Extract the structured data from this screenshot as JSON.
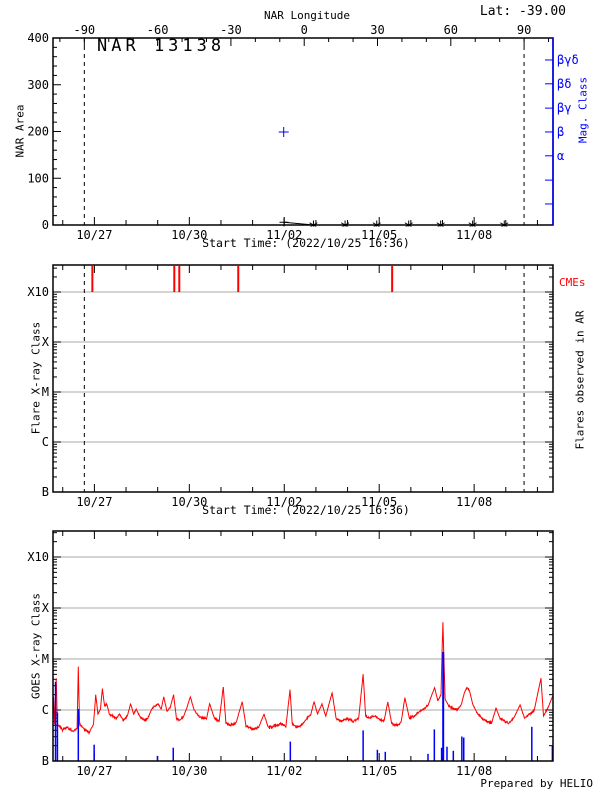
{
  "figure": {
    "lat_label": "Lat: -39.00",
    "prepared_by": "Prepared by HELIO"
  },
  "colors": {
    "red": "#ff0000",
    "blue": "#0000ff",
    "grid": "#a9a9a9",
    "frame": "#000000",
    "background": "#ffffff"
  },
  "time_axis": {
    "start_caption": "Start Time: (2022/10/25 16:36)",
    "span_days": 15.8,
    "major_ticks": [
      {
        "day": 1.308,
        "label": "10/27"
      },
      {
        "day": 4.308,
        "label": "10/30"
      },
      {
        "day": 7.308,
        "label": "11/02"
      },
      {
        "day": 10.308,
        "label": "11/05"
      },
      {
        "day": 13.308,
        "label": "11/08"
      }
    ],
    "minor_step_days": 1,
    "first_minor_day": 0.308
  },
  "chart_data": [
    {
      "type": "scatter",
      "panel": "nar-area",
      "title": "NAR 13138",
      "ylabel": "NAR Area",
      "ylim": [
        0,
        400
      ],
      "yticks": [
        0,
        100,
        200,
        300,
        400
      ],
      "y_minor_step": 20,
      "top_axis": {
        "label": "NAR Longitude",
        "deg_ticks": [
          -90,
          -60,
          -30,
          0,
          30,
          60,
          90
        ],
        "deg_minor_step": 10,
        "deg_at_day0": -102.82,
        "deg_per_day": 12.9525
      },
      "right_axis": {
        "label": "Mag. Class",
        "ticks": [
          {
            "label": "βγδ",
            "value": 353
          },
          {
            "label": "βδ",
            "value": 302
          },
          {
            "label": "βγ",
            "value": 250
          },
          {
            "label": "β",
            "value": 199
          },
          {
            "label": "α",
            "value": 148
          },
          {
            "label": "",
            "value": 96
          },
          {
            "label": "",
            "value": 45
          }
        ]
      },
      "limb_lines_days": [
        0.99,
        14.886
      ],
      "area_series": {
        "plus_point": {
          "day": 7.3,
          "area": 6
        },
        "zero_star_days": [
          8.23,
          9.23,
          10.23,
          11.24,
          12.25,
          13.26,
          14.26
        ]
      },
      "mag_point": {
        "day": 7.29,
        "value": 199,
        "class": "β"
      }
    },
    {
      "type": "scatter",
      "panel": "flares-observed",
      "ylabel": "Flare X-ray Class",
      "right_label": "Flares observed in AR",
      "cme_label": "CMEs",
      "ytick_labels": [
        "B",
        "C",
        "M",
        "X",
        "X10"
      ],
      "grid_levels": [
        1,
        2,
        3,
        4
      ],
      "y_top_level": 4.54,
      "limb_lines_days": [
        0.99,
        14.886
      ],
      "cme_days": [
        1.244,
        3.833,
        3.991,
        5.854,
        10.717
      ],
      "flare_points": []
    },
    {
      "type": "line",
      "panel": "goes-xray",
      "ylabel": "GOES X-ray Class",
      "ytick_labels": [
        "B",
        "C",
        "M",
        "X",
        "X10"
      ],
      "grid_levels": [
        1,
        2,
        3,
        4
      ],
      "y_top_level": 4.51,
      "flux_anchors_day_level": [
        [
          0.02,
          1.25
        ],
        [
          0.05,
          0.72
        ],
        [
          0.1,
          1.62
        ],
        [
          0.14,
          0.72
        ],
        [
          0.3,
          0.62
        ],
        [
          0.45,
          0.66
        ],
        [
          0.62,
          0.58
        ],
        [
          0.76,
          0.64
        ],
        [
          0.8,
          1.85
        ],
        [
          0.84,
          0.72
        ],
        [
          1.0,
          0.62
        ],
        [
          1.15,
          0.56
        ],
        [
          1.28,
          0.72
        ],
        [
          1.35,
          1.3
        ],
        [
          1.42,
          0.92
        ],
        [
          1.5,
          1.02
        ],
        [
          1.56,
          1.42
        ],
        [
          1.63,
          1.08
        ],
        [
          1.7,
          1.12
        ],
        [
          1.78,
          0.92
        ],
        [
          1.9,
          0.88
        ],
        [
          2.0,
          0.84
        ],
        [
          2.1,
          0.92
        ],
        [
          2.22,
          0.8
        ],
        [
          2.35,
          0.88
        ],
        [
          2.45,
          1.12
        ],
        [
          2.55,
          0.92
        ],
        [
          2.63,
          1.02
        ],
        [
          2.75,
          0.86
        ],
        [
          2.9,
          0.8
        ],
        [
          3.0,
          0.84
        ],
        [
          3.12,
          1.02
        ],
        [
          3.22,
          1.08
        ],
        [
          3.32,
          1.12
        ],
        [
          3.42,
          1.02
        ],
        [
          3.5,
          1.26
        ],
        [
          3.6,
          0.98
        ],
        [
          3.7,
          1.04
        ],
        [
          3.81,
          1.3
        ],
        [
          3.9,
          0.84
        ],
        [
          4.0,
          0.8
        ],
        [
          4.12,
          0.86
        ],
        [
          4.25,
          1.08
        ],
        [
          4.34,
          1.26
        ],
        [
          4.45,
          1.02
        ],
        [
          4.6,
          0.88
        ],
        [
          4.72,
          0.84
        ],
        [
          4.85,
          0.82
        ],
        [
          4.95,
          1.12
        ],
        [
          5.1,
          0.84
        ],
        [
          5.25,
          0.78
        ],
        [
          5.38,
          1.45
        ],
        [
          5.46,
          0.76
        ],
        [
          5.6,
          0.7
        ],
        [
          5.78,
          0.74
        ],
        [
          5.98,
          1.16
        ],
        [
          6.1,
          0.68
        ],
        [
          6.3,
          0.63
        ],
        [
          6.5,
          0.66
        ],
        [
          6.67,
          0.92
        ],
        [
          6.8,
          0.66
        ],
        [
          7.0,
          0.68
        ],
        [
          7.2,
          0.73
        ],
        [
          7.36,
          0.68
        ],
        [
          7.49,
          1.4
        ],
        [
          7.56,
          0.73
        ],
        [
          7.7,
          0.66
        ],
        [
          7.85,
          0.7
        ],
        [
          8.0,
          0.82
        ],
        [
          8.15,
          0.92
        ],
        [
          8.25,
          1.16
        ],
        [
          8.36,
          0.92
        ],
        [
          8.5,
          1.12
        ],
        [
          8.62,
          0.88
        ],
        [
          8.82,
          1.34
        ],
        [
          8.95,
          0.82
        ],
        [
          9.1,
          0.78
        ],
        [
          9.3,
          0.83
        ],
        [
          9.5,
          0.78
        ],
        [
          9.66,
          0.84
        ],
        [
          9.8,
          1.7
        ],
        [
          9.88,
          0.88
        ],
        [
          10.0,
          0.84
        ],
        [
          10.16,
          0.88
        ],
        [
          10.3,
          0.83
        ],
        [
          10.46,
          0.78
        ],
        [
          10.58,
          1.16
        ],
        [
          10.7,
          0.74
        ],
        [
          10.86,
          0.7
        ],
        [
          11.0,
          0.76
        ],
        [
          11.12,
          1.24
        ],
        [
          11.26,
          0.84
        ],
        [
          11.42,
          0.88
        ],
        [
          11.6,
          0.98
        ],
        [
          11.76,
          1.04
        ],
        [
          11.86,
          1.1
        ],
        [
          11.96,
          1.28
        ],
        [
          12.06,
          1.44
        ],
        [
          12.16,
          1.18
        ],
        [
          12.26,
          1.3
        ],
        [
          12.32,
          2.72
        ],
        [
          12.39,
          1.22
        ],
        [
          12.5,
          1.08
        ],
        [
          12.62,
          1.04
        ],
        [
          12.76,
          1.0
        ],
        [
          12.9,
          1.1
        ],
        [
          13.0,
          1.34
        ],
        [
          13.08,
          1.44
        ],
        [
          13.16,
          1.38
        ],
        [
          13.26,
          1.12
        ],
        [
          13.4,
          0.94
        ],
        [
          13.56,
          0.84
        ],
        [
          13.7,
          0.78
        ],
        [
          13.86,
          0.74
        ],
        [
          14.0,
          1.04
        ],
        [
          14.12,
          0.84
        ],
        [
          14.26,
          0.78
        ],
        [
          14.4,
          0.74
        ],
        [
          14.56,
          0.84
        ],
        [
          14.76,
          1.1
        ],
        [
          14.9,
          0.84
        ],
        [
          15.05,
          0.92
        ],
        [
          15.2,
          0.98
        ],
        [
          15.42,
          1.62
        ],
        [
          15.5,
          0.88
        ],
        [
          15.62,
          1.02
        ],
        [
          15.73,
          1.18
        ],
        [
          15.8,
          1.28
        ]
      ],
      "particle_bars_day_level": [
        [
          0.08,
          1.55
        ],
        [
          0.14,
          0.95
        ],
        [
          0.8,
          1.02
        ],
        [
          1.3,
          0.32
        ],
        [
          3.3,
          0.1
        ],
        [
          3.8,
          0.26
        ],
        [
          7.5,
          0.38
        ],
        [
          9.8,
          0.6
        ],
        [
          10.25,
          0.22
        ],
        [
          10.5,
          0.18
        ],
        [
          11.85,
          0.14
        ],
        [
          12.05,
          0.62
        ],
        [
          12.28,
          0.26
        ],
        [
          12.33,
          2.14
        ],
        [
          12.45,
          0.28
        ],
        [
          12.65,
          0.2
        ],
        [
          12.92,
          0.48
        ],
        [
          12.98,
          0.46
        ],
        [
          15.13,
          0.67
        ],
        [
          15.78,
          0.3
        ]
      ]
    }
  ]
}
